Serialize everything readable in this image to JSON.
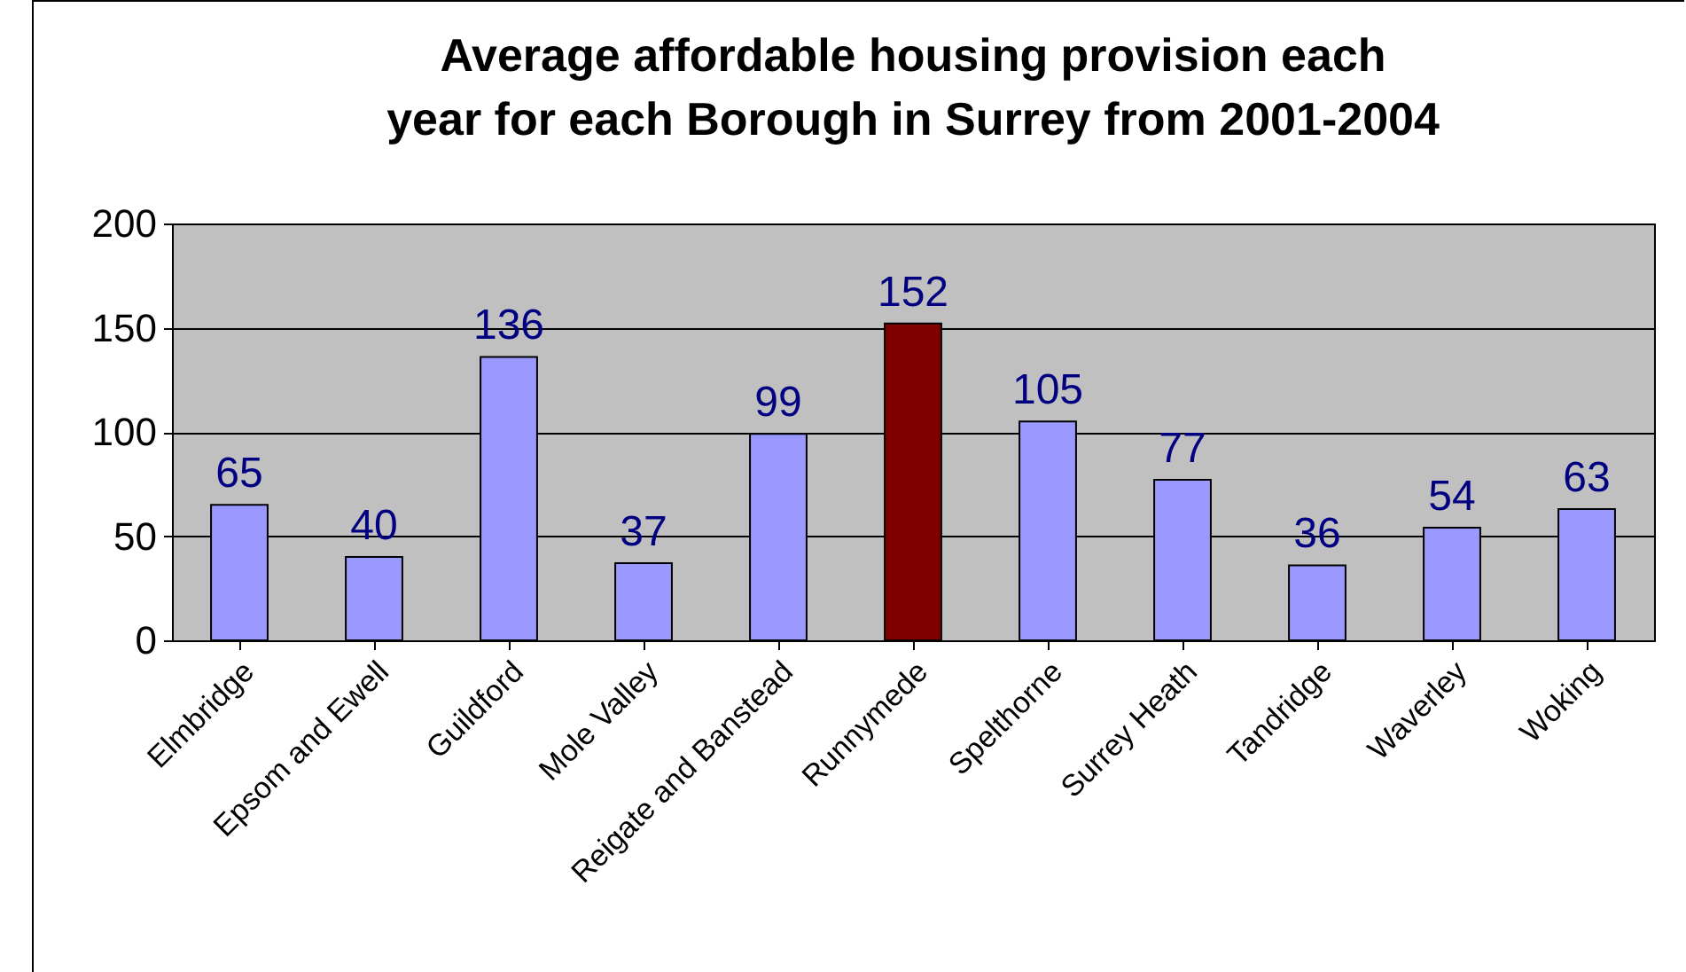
{
  "chart_data": {
    "type": "bar",
    "title": "Average affordable housing provision each year for each Borough in Surrey from 2001-2004",
    "categories": [
      "Elmbridge",
      "Epsom and Ewell",
      "Guildford",
      "Mole Valley",
      "Reigate and Banstead",
      "Runnymede",
      "Spelthorne",
      "Surrey Heath",
      "Tandridge",
      "Waverley",
      "Woking"
    ],
    "values": [
      65,
      40,
      136,
      37,
      99,
      152,
      105,
      77,
      36,
      54,
      63
    ],
    "colors": [
      "#9999ff",
      "#9999ff",
      "#9999ff",
      "#9999ff",
      "#9999ff",
      "#800000",
      "#9999ff",
      "#9999ff",
      "#9999ff",
      "#9999ff",
      "#9999ff"
    ],
    "ylim": [
      0,
      200
    ],
    "yticks": [
      0,
      50,
      100,
      150,
      200
    ],
    "grid": "y",
    "data_labels": true
  }
}
